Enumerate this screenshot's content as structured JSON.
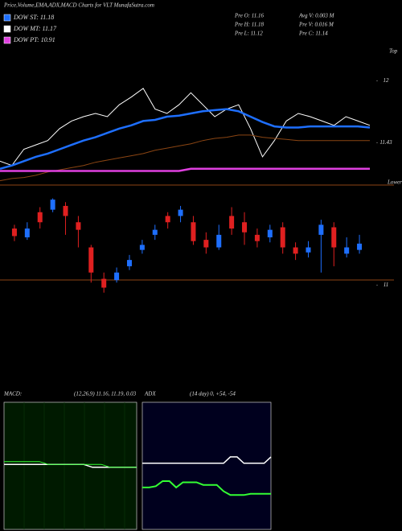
{
  "header": {
    "title": "Price,Volume,EMA,ADX,MACD Charts for VLT MunafaSutra.com",
    "legend": [
      {
        "label": "DOW ST: 11.18",
        "color": "#1e6fff"
      },
      {
        "label": "DOW MT: 11.17",
        "color": "#ffffff"
      },
      {
        "label": "DOW PT: 10.91",
        "color": "#e040e0"
      }
    ],
    "stats": [
      "Pre  O: 11.16",
      "Avg V: 0.003 M",
      "Pre  H: 11.18",
      "Pre  V: 0.016 M",
      "Pre  L: 11.12",
      "Pre  C: 11.14"
    ]
  },
  "chart_data": [
    {
      "type": "line",
      "top_label": "Top",
      "bottom_label": "Lower",
      "ylim": [
        11.04,
        12.3
      ],
      "yticks": [
        12,
        11.43
      ],
      "categories": [
        null,
        null,
        null,
        null,
        null,
        null,
        null,
        null,
        null,
        null,
        null,
        null,
        null,
        null,
        null,
        null,
        null,
        null,
        null,
        null,
        null,
        null,
        null,
        null,
        null,
        null,
        null,
        null,
        null,
        null,
        null,
        null
      ],
      "series": [
        {
          "color": "#ffffff",
          "width": 1,
          "values": [
            11.26,
            11.22,
            11.37,
            11.41,
            11.45,
            11.56,
            11.63,
            11.67,
            11.7,
            11.67,
            11.78,
            11.85,
            11.93,
            11.74,
            11.7,
            11.78,
            11.89,
            11.78,
            11.67,
            11.74,
            11.78,
            11.56,
            11.3,
            11.45,
            11.63,
            11.7,
            11.67,
            11.63,
            11.59,
            11.67,
            11.63,
            11.59
          ]
        },
        {
          "color": "#1e6fff",
          "width": 2.5,
          "values": [
            11.19,
            11.22,
            11.26,
            11.3,
            11.33,
            11.37,
            11.41,
            11.45,
            11.48,
            11.52,
            11.56,
            11.59,
            11.63,
            11.64,
            11.67,
            11.68,
            11.7,
            11.72,
            11.73,
            11.74,
            11.72,
            11.67,
            11.62,
            11.58,
            11.57,
            11.57,
            11.58,
            11.58,
            11.58,
            11.58,
            11.58,
            11.57
          ]
        },
        {
          "color": "#8b4513",
          "width": 1,
          "values": [
            11.08,
            11.1,
            11.11,
            11.13,
            11.16,
            11.18,
            11.2,
            11.22,
            11.25,
            11.27,
            11.29,
            11.31,
            11.33,
            11.36,
            11.38,
            11.4,
            11.42,
            11.45,
            11.47,
            11.48,
            11.5,
            11.5,
            11.48,
            11.47,
            11.46,
            11.45,
            11.45,
            11.45,
            11.45,
            11.45,
            11.45,
            11.45
          ]
        },
        {
          "color": "#e040e0",
          "width": 2.5,
          "values": [
            11.17,
            11.17,
            11.17,
            11.17,
            11.17,
            11.17,
            11.17,
            11.17,
            11.17,
            11.17,
            11.17,
            11.17,
            11.17,
            11.17,
            11.17,
            11.17,
            11.19,
            11.19,
            11.19,
            11.19,
            11.19,
            11.19,
            11.19,
            11.19,
            11.19,
            11.19,
            11.19,
            11.19,
            11.19,
            11.19,
            11.19,
            11.19
          ]
        }
      ]
    },
    {
      "type": "candlestick",
      "ylim": [
        10.9,
        11.7
      ],
      "yticks": [
        11
      ],
      "up_color": "#1e6fff",
      "down_color": "#e02020",
      "categories": [
        null,
        null,
        null,
        null,
        null,
        null,
        null,
        null,
        null,
        null,
        null,
        null,
        null,
        null,
        null,
        null,
        null,
        null,
        null,
        null,
        null,
        null,
        null,
        null,
        null,
        null,
        null,
        null
      ],
      "open": [
        11.45,
        11.38,
        11.58,
        11.6,
        11.63,
        11.5,
        11.3,
        11.05,
        11.04,
        11.15,
        11.28,
        11.4,
        11.55,
        11.55,
        11.5,
        11.36,
        11.3,
        11.55,
        11.5,
        11.4,
        11.38,
        11.46,
        11.3,
        11.26,
        11.4,
        11.46,
        11.25,
        11.28
      ],
      "close": [
        11.39,
        11.45,
        11.5,
        11.68,
        11.55,
        11.44,
        11.1,
        10.98,
        11.1,
        11.2,
        11.32,
        11.44,
        11.5,
        11.6,
        11.35,
        11.3,
        11.4,
        11.45,
        11.42,
        11.35,
        11.44,
        11.3,
        11.25,
        11.3,
        11.48,
        11.3,
        11.3,
        11.33
      ],
      "high": [
        11.48,
        11.5,
        11.62,
        11.69,
        11.66,
        11.55,
        11.32,
        11.1,
        11.14,
        11.24,
        11.36,
        11.48,
        11.58,
        11.63,
        11.55,
        11.42,
        11.48,
        11.62,
        11.58,
        11.45,
        11.48,
        11.5,
        11.34,
        11.35,
        11.52,
        11.5,
        11.38,
        11.4
      ],
      "low": [
        11.35,
        11.36,
        11.45,
        11.58,
        11.4,
        11.3,
        11.02,
        10.94,
        11.02,
        11.12,
        11.25,
        11.36,
        11.45,
        11.5,
        11.32,
        11.25,
        11.28,
        11.4,
        11.32,
        11.3,
        11.34,
        11.25,
        11.2,
        11.22,
        11.1,
        11.15,
        11.22,
        11.25
      ]
    },
    {
      "type": "line",
      "title": "MACD:",
      "subtitle": "(12,26,9) 11.16, 11.19, 0.03",
      "ylim": [
        -0.2,
        0.25
      ],
      "categories": [
        null,
        null,
        null,
        null,
        null,
        null,
        null,
        null,
        null,
        null,
        null,
        null,
        null,
        null,
        null,
        null
      ],
      "series": [
        {
          "color": "#ffffff",
          "width": 1.5,
          "values": [
            0.03,
            0.03,
            0.03,
            0.03,
            0.03,
            0.03,
            0.03,
            0.03,
            0.03,
            0.03,
            0.02,
            0.02,
            0.02,
            0.02,
            0.02,
            0.02
          ]
        },
        {
          "color": "#33ff33",
          "width": 1,
          "values": [
            0.04,
            0.04,
            0.04,
            0.04,
            0.04,
            0.03,
            0.03,
            0.03,
            0.03,
            0.03,
            0.03,
            0.03,
            0.02,
            0.02,
            0.02,
            0.02
          ]
        }
      ]
    },
    {
      "type": "line",
      "title": "ADX",
      "subtitle": "(14 day) 0, +54, -54",
      "ylim": [
        0,
        100
      ],
      "categories": [
        null,
        null,
        null,
        null,
        null,
        null,
        null,
        null,
        null,
        null,
        null,
        null,
        null,
        null,
        null,
        null,
        null,
        null,
        null,
        null
      ],
      "series": [
        {
          "color": "#ffffff",
          "width": 1.5,
          "values": [
            52,
            52,
            52,
            52,
            52,
            52,
            52,
            52,
            52,
            52,
            52,
            52,
            52,
            57,
            57,
            52,
            52,
            52,
            52,
            57
          ]
        },
        {
          "color": "#33ff33",
          "width": 2,
          "values": [
            33,
            33,
            34,
            38,
            38,
            33,
            37,
            37,
            37,
            35,
            35,
            35,
            30,
            27,
            27,
            27,
            28,
            28,
            28,
            28
          ]
        }
      ]
    }
  ]
}
